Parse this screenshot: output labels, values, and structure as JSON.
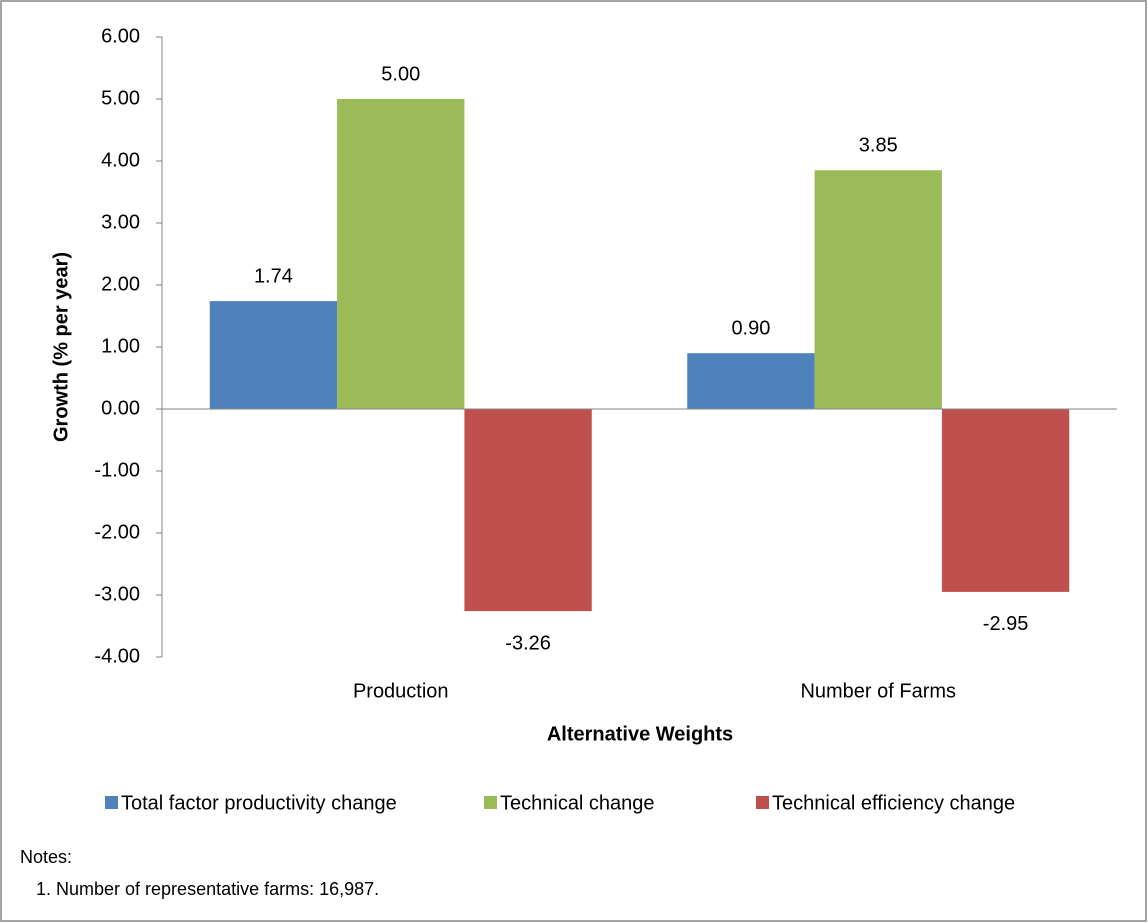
{
  "chart_data": {
    "type": "bar",
    "x_label": "Alternative Weights",
    "y_label": "Growth (% per year)",
    "categories": [
      "Production",
      "Number of Farms"
    ],
    "series": [
      {
        "name": "Total factor productivity change",
        "color": "#4f81bd",
        "values": [
          1.74,
          0.9
        ],
        "value_labels": [
          "1.74",
          "0.90"
        ]
      },
      {
        "name": "Technical change",
        "color": "#9bbb59",
        "values": [
          5.0,
          3.85
        ],
        "value_labels": [
          "5.00",
          "3.85"
        ]
      },
      {
        "name": "Technical efficiency change",
        "color": "#c0504d",
        "values": [
          -3.26,
          -2.95
        ],
        "value_labels": [
          "-3.26",
          "-2.95"
        ]
      }
    ],
    "ylim": [
      -4,
      6
    ],
    "yticks": [
      {
        "value": 6,
        "label": "6.00"
      },
      {
        "value": 5,
        "label": "5.00"
      },
      {
        "value": 4,
        "label": "4.00"
      },
      {
        "value": 3,
        "label": "3.00"
      },
      {
        "value": 2,
        "label": "2.00"
      },
      {
        "value": 1,
        "label": "1.00"
      },
      {
        "value": 0,
        "label": "0.00"
      },
      {
        "value": -1,
        "label": "-1.00"
      },
      {
        "value": -2,
        "label": "-2.00"
      },
      {
        "value": -3,
        "label": "-3.00"
      },
      {
        "value": -4,
        "label": "-4.00"
      }
    ],
    "legend": "bottom"
  },
  "notes": {
    "title": "Notes:",
    "items": [
      "1. Number of representative farms: 16,987."
    ]
  }
}
